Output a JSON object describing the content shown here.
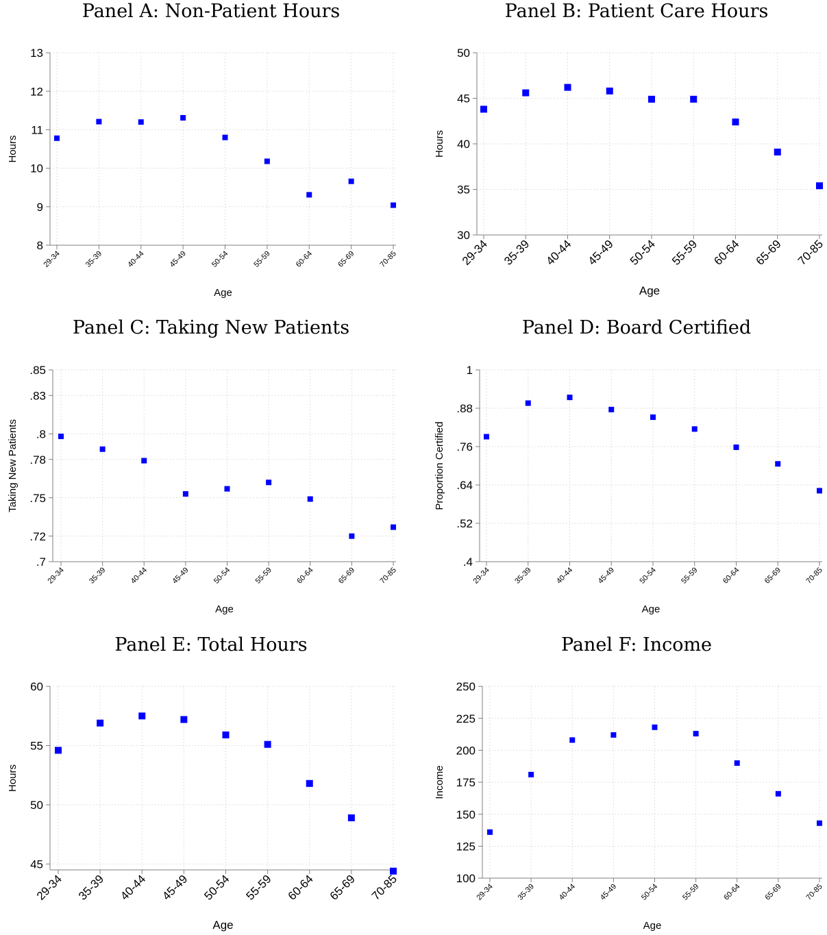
{
  "chart_data": [
    {
      "id": "A",
      "type": "scatter",
      "title": "Panel A: Non-Patient Hours",
      "xlabel": "Age",
      "ylabel": "Hours",
      "categories": [
        "29-34",
        "35-39",
        "40-44",
        "45-49",
        "50-54",
        "55-59",
        "60-64",
        "65-69",
        "70-85"
      ],
      "values": [
        10.78,
        11.21,
        11.2,
        11.31,
        10.8,
        10.18,
        9.31,
        9.66,
        9.04
      ],
      "ylim": [
        8,
        13
      ],
      "yticks": [
        8,
        9,
        10,
        11,
        12,
        13
      ],
      "ytick_labels": [
        "8",
        "9",
        "10",
        "11",
        "12",
        "13"
      ],
      "marker_color": "#0000ff",
      "grid": true
    },
    {
      "id": "B",
      "type": "scatter",
      "title": "Panel B: Patient Care Hours",
      "xlabel": "Age",
      "ylabel": "Hours",
      "categories": [
        "29-34",
        "35-39",
        "40-44",
        "45-49",
        "50-54",
        "55-59",
        "60-64",
        "65-69",
        "70-85"
      ],
      "values": [
        43.8,
        45.6,
        46.2,
        45.8,
        44.9,
        44.9,
        42.4,
        39.1,
        35.4
      ],
      "ylim": [
        30,
        50
      ],
      "yticks": [
        30,
        35,
        40,
        45,
        50
      ],
      "ytick_labels": [
        "30",
        "35",
        "40",
        "45",
        "50"
      ],
      "marker_color": "#0000ff",
      "grid": true
    },
    {
      "id": "C",
      "type": "scatter",
      "title": "Panel C: Taking New Patients",
      "xlabel": "Age",
      "ylabel": "Taking New Patients",
      "categories": [
        "29-34",
        "35-39",
        "40-44",
        "45-49",
        "50-54",
        "55-59",
        "60-64",
        "65-69",
        "70-85"
      ],
      "values": [
        0.798,
        0.788,
        0.779,
        0.753,
        0.757,
        0.762,
        0.749,
        0.72,
        0.727
      ],
      "ylim": [
        0.7,
        0.85
      ],
      "yticks": [
        0.7,
        0.72,
        0.75,
        0.78,
        0.8,
        0.83,
        0.85
      ],
      "ytick_labels": [
        ".7",
        ".72",
        ".75",
        ".78",
        ".8",
        ".83",
        ".85"
      ],
      "marker_color": "#0000ff",
      "grid": true
    },
    {
      "id": "D",
      "type": "scatter",
      "title": "Panel D: Board Certified",
      "xlabel": "Age",
      "ylabel": "Proportion Certified",
      "categories": [
        "29-34",
        "35-39",
        "40-44",
        "45-49",
        "50-54",
        "55-59",
        "60-64",
        "65-69",
        "70-85"
      ],
      "values": [
        0.791,
        0.896,
        0.914,
        0.876,
        0.852,
        0.815,
        0.758,
        0.706,
        0.622
      ],
      "ylim": [
        0.4,
        1
      ],
      "yticks": [
        0.4,
        0.52,
        0.64,
        0.76,
        0.88,
        1
      ],
      "ytick_labels": [
        ".4",
        ".52",
        ".64",
        ".76",
        ".88",
        "1"
      ],
      "marker_color": "#0000ff",
      "grid": true
    },
    {
      "id": "E",
      "type": "scatter",
      "title": "Panel E: Total Hours",
      "xlabel": "Age",
      "ylabel": "Hours",
      "categories": [
        "29-34",
        "35-39",
        "40-44",
        "45-49",
        "50-54",
        "55-59",
        "60-64",
        "65-69",
        "70-85"
      ],
      "values": [
        54.6,
        56.9,
        57.5,
        57.2,
        55.9,
        55.1,
        51.8,
        48.9,
        44.4
      ],
      "ylim": [
        44.5,
        60
      ],
      "yticks": [
        45,
        50,
        55,
        60
      ],
      "ytick_labels": [
        "45",
        "50",
        "55",
        "60"
      ],
      "marker_color": "#0000ff",
      "grid": true
    },
    {
      "id": "F",
      "type": "scatter",
      "title": "Panel F: Income",
      "xlabel": "Age",
      "ylabel": "Income",
      "categories": [
        "29-34",
        "35-39",
        "40-44",
        "45-49",
        "50-54",
        "55-59",
        "60-64",
        "65-69",
        "70-85"
      ],
      "values": [
        136,
        181,
        208,
        212,
        218,
        213,
        190,
        166,
        143
      ],
      "ylim": [
        100,
        250
      ],
      "yticks": [
        100,
        125,
        150,
        175,
        200,
        225,
        250
      ],
      "ytick_labels": [
        "100",
        "125",
        "150",
        "175",
        "200",
        "225",
        "250"
      ],
      "marker_color": "#0000ff",
      "grid": true
    }
  ]
}
